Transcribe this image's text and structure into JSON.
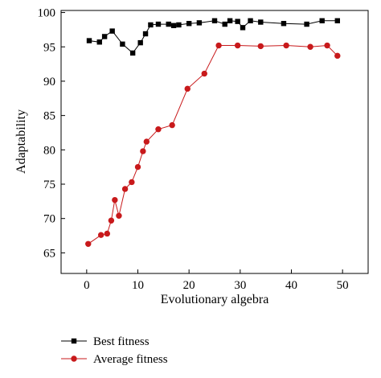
{
  "chart_data": {
    "type": "line",
    "xlabel": "Evolutionary algebra",
    "ylabel": "Adaptability",
    "xlim": [
      -5,
      55
    ],
    "ylim": [
      62,
      100.3
    ],
    "xticks": [
      0,
      10,
      20,
      30,
      40,
      50
    ],
    "yticks": [
      65,
      70,
      75,
      80,
      85,
      90,
      95,
      100
    ],
    "grid": false,
    "legend_position": "bottom-left, below plot",
    "series": [
      {
        "name": "Best fitness",
        "color": "#000000",
        "marker": "square",
        "x": [
          0.5,
          2.5,
          3.5,
          5,
          7,
          9,
          10.5,
          11.5,
          12.5,
          14,
          16,
          17,
          18,
          20,
          22,
          25,
          27,
          28,
          29.5,
          30.5,
          32,
          34,
          38.5,
          43,
          46,
          49
        ],
        "y": [
          95.9,
          95.7,
          96.5,
          97.3,
          95.4,
          94.1,
          95.6,
          96.9,
          98.2,
          98.3,
          98.3,
          98.1,
          98.2,
          98.4,
          98.5,
          98.8,
          98.3,
          98.8,
          98.7,
          97.8,
          98.8,
          98.6,
          98.4,
          98.3,
          98.8,
          98.8
        ]
      },
      {
        "name": "Average fitness",
        "color": "#c8191b",
        "marker": "circle",
        "x": [
          0.3,
          2.8,
          4,
          4.8,
          5.5,
          6.3,
          7.5,
          8.8,
          10,
          11,
          11.7,
          14,
          16.7,
          19.7,
          23,
          25.8,
          29.5,
          34,
          39,
          43.7,
          47,
          49
        ],
        "y": [
          66.3,
          67.6,
          67.8,
          69.7,
          72.7,
          70.4,
          74.3,
          75.3,
          77.5,
          79.8,
          81.2,
          83.0,
          83.6,
          88.9,
          91.1,
          95.2,
          95.2,
          95.1,
          95.2,
          95.0,
          95.2,
          93.7
        ]
      }
    ]
  }
}
